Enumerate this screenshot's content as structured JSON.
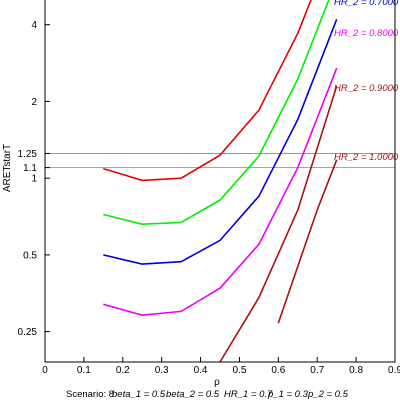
{
  "chart_data": {
    "type": "line",
    "title": "",
    "xlabel": "ρ",
    "ylabel": "ARETstarT",
    "xlim": [
      0,
      0.9
    ],
    "ylim": [
      0.19,
      5.0
    ],
    "ylog": true,
    "xticks": [
      0,
      0.1,
      0.2,
      0.3,
      0.4,
      0.5,
      0.6,
      0.7,
      0.8,
      0.9
    ],
    "xtick_labels": [
      "0",
      "0.1",
      "0.2",
      "0.3",
      "0.4",
      "0.5",
      "0.6",
      "0.7",
      "0.8",
      "0.9"
    ],
    "yticks": [
      0.25,
      0.5,
      1,
      1.1,
      1.25,
      2,
      4
    ],
    "ytick_labels": [
      "0.25",
      "0.5",
      "1",
      "1.1",
      "1.25",
      "2",
      "4"
    ],
    "reference_lines": [
      1.1,
      1.25
    ],
    "grid": false,
    "series": [
      {
        "name": "HR_2 = 0.7000",
        "color": "#e80000",
        "x": [
          0.15,
          0.25,
          0.35,
          0.45,
          0.55,
          0.65,
          0.75
        ],
        "y": [
          1.09,
          0.98,
          1.0,
          1.23,
          1.85,
          3.7,
          9.0
        ]
      },
      {
        "name": "HR_2 = 0.8000",
        "color": "#00ee00",
        "x": [
          0.15,
          0.25,
          0.35,
          0.45,
          0.55,
          0.65,
          0.75
        ],
        "y": [
          0.72,
          0.66,
          0.67,
          0.82,
          1.22,
          2.45,
          6.0
        ]
      },
      {
        "name": "HR_2 = 0.8000",
        "color": "#0000dd",
        "x": [
          0.15,
          0.25,
          0.35,
          0.45,
          0.55,
          0.65,
          0.75
        ],
        "y": [
          0.5,
          0.46,
          0.47,
          0.57,
          0.85,
          1.7,
          4.2
        ]
      },
      {
        "name": "HR_2 = 0.8000",
        "color": "#ee00ee",
        "x": [
          0.15,
          0.25,
          0.35,
          0.45,
          0.55,
          0.65,
          0.75
        ],
        "y": [
          0.32,
          0.29,
          0.3,
          0.37,
          0.55,
          1.1,
          2.7
        ]
      },
      {
        "name": "HR_2 = 0.9000",
        "color": "#aa1111",
        "x": [
          0.45,
          0.55,
          0.65,
          0.75
        ],
        "y": [
          0.19,
          0.34,
          0.75,
          2.3
        ]
      },
      {
        "name": "HR_2 = 1.0000",
        "color": "#aa1111",
        "x": [
          0.6,
          0.7,
          0.75
        ],
        "y": [
          0.27,
          0.75,
          1.18
        ]
      }
    ],
    "series_label_texts": [
      "HR_2 = 0.7000",
      "HR_2 = 0.8000",
      "HR_2 = 0.9000",
      "HR_2 = 1.0000"
    ],
    "caption": {
      "scenario": "Scenario: 8",
      "beta_1": "beta_1 = 0.5",
      "beta_2": "beta_2 = 0.5",
      "hr_1": "HR_1 = 0.7",
      "p_1": "p_1 = 0.3",
      "p_2": "p_2 = 0.5"
    }
  }
}
